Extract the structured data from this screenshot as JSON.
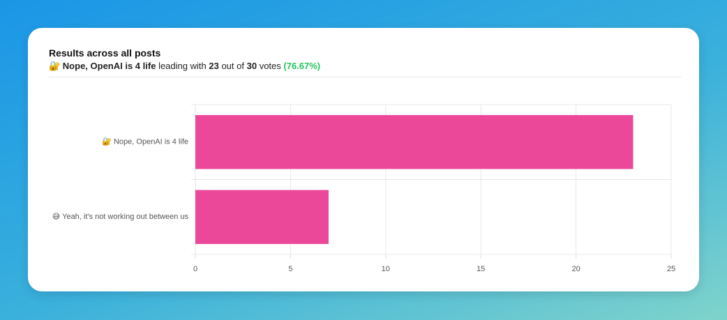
{
  "header": {
    "title": "Results across all posts",
    "summary": {
      "leader": "🔐 Nope, OpenAI is 4 life",
      "text1": "leading with",
      "leading_votes": 23,
      "text2": "out of",
      "total_votes": 30,
      "text3": "votes",
      "percent": "(76.67%)"
    }
  },
  "chart_data": {
    "type": "hbar",
    "categories": [
      "🔐 Nope, OpenAI is 4 life",
      "😅 Yeah, it's not working out between us"
    ],
    "values": [
      23,
      7
    ],
    "color": "#ec4899",
    "xlim": [
      0,
      25
    ],
    "xticks": [
      0,
      5,
      10,
      15,
      20,
      25
    ],
    "grid": true
  }
}
